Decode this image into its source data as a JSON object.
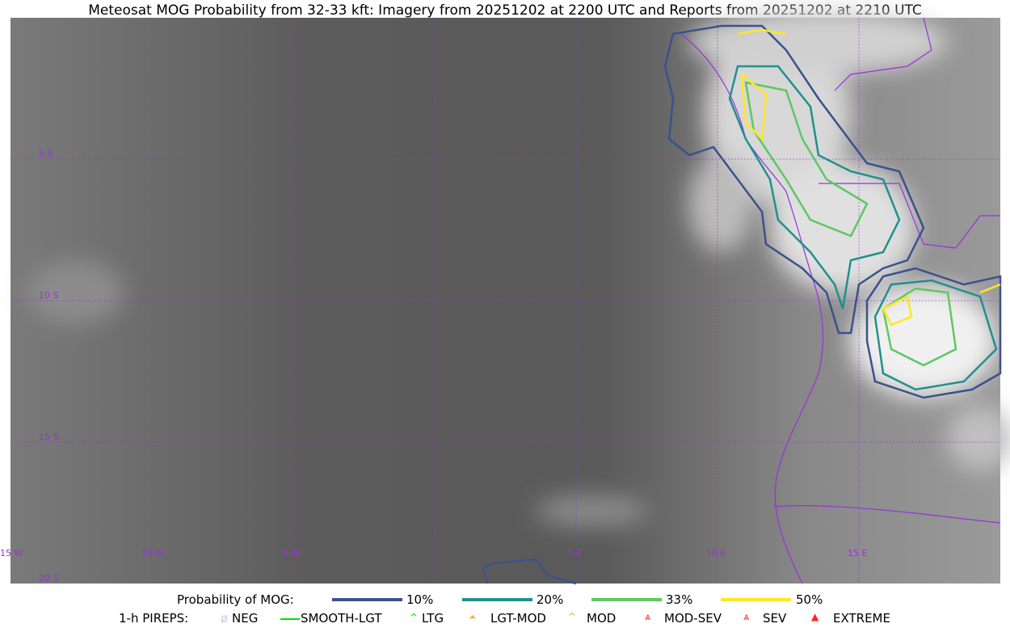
{
  "title": "Meteosat MOG Probability from 32-33 kft: Imagery from 20251202 at 2200 UTC and Reports from 20251202 at 2210 UTC",
  "map": {
    "longitude_labels": [
      "15 W",
      "10 W",
      "5 W",
      "5 E",
      "10 E",
      "15 E"
    ],
    "latitude_labels": [
      "5 S",
      "10 S",
      "15 S",
      "20 S"
    ],
    "grid_color": "#9b30d9",
    "border_color": "#9b30d9"
  },
  "legend": {
    "probability_title": "Probability of MOG:",
    "probability_levels": [
      {
        "label": "10%",
        "color": "#3b528b"
      },
      {
        "label": "20%",
        "color": "#21908d"
      },
      {
        "label": "33%",
        "color": "#5dc863"
      },
      {
        "label": "50%",
        "color": "#fde725"
      }
    ],
    "pireps_title": "1-h PIREPS:",
    "pireps": [
      {
        "label": "NEG",
        "color": "#c8c8f0",
        "icon": "neg-icon"
      },
      {
        "label": "SMOOTH-LGT",
        "color": "#00e000",
        "icon": "line-icon"
      },
      {
        "label": "LTG",
        "color": "#00e000",
        "icon": "caret-icon"
      },
      {
        "label": "LGT-MOD",
        "color": "#ffb020",
        "icon": "lgt-mod-icon"
      },
      {
        "label": "MOD",
        "color": "#ffb020",
        "icon": "mod-icon"
      },
      {
        "label": "MOD-SEV",
        "color": "#ff2020",
        "icon": "mod-sev-icon"
      },
      {
        "label": "SEV",
        "color": "#ff2020",
        "icon": "sev-icon"
      },
      {
        "label": "EXTREME",
        "color": "#ff2020",
        "icon": "extreme-icon"
      }
    ]
  }
}
